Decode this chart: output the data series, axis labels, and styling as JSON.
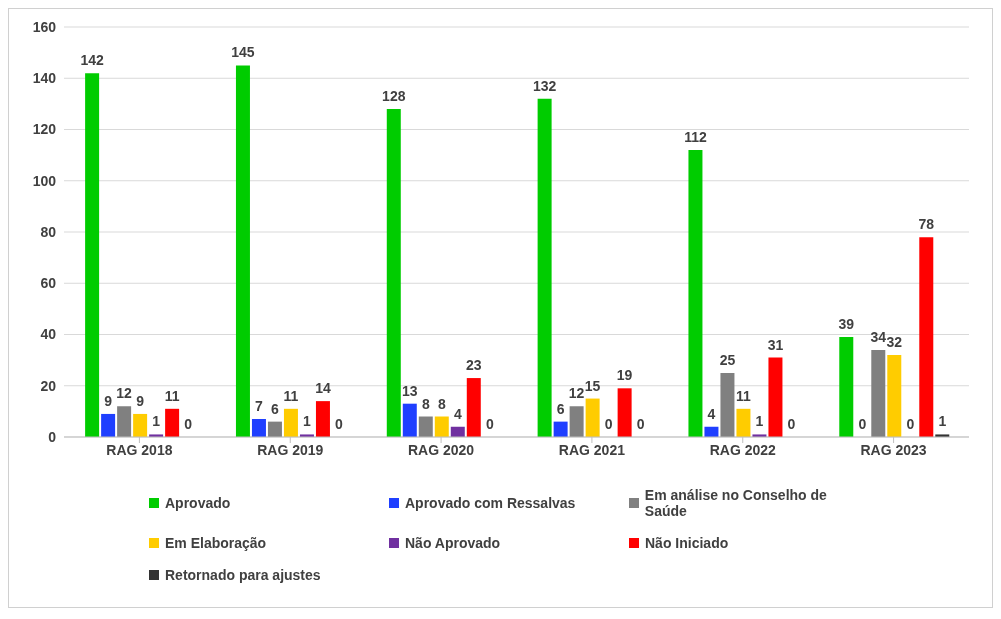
{
  "chart_data": {
    "type": "bar",
    "categories": [
      "RAG 2018",
      "RAG 2019",
      "RAG 2020",
      "RAG 2021",
      "RAG 2022",
      "RAG 2023"
    ],
    "series": [
      {
        "name": "Aprovado",
        "color": "#00cc00",
        "values": [
          142,
          145,
          128,
          132,
          112,
          39
        ]
      },
      {
        "name": "Aprovado com Ressalvas",
        "color": "#1f3fff",
        "values": [
          9,
          7,
          13,
          6,
          4,
          0
        ]
      },
      {
        "name": "Em análise no Conselho de Saúde",
        "color": "#808080",
        "values": [
          12,
          6,
          8,
          12,
          25,
          34
        ]
      },
      {
        "name": "Em Elaboração",
        "color": "#ffcc00",
        "values": [
          9,
          11,
          8,
          15,
          11,
          32
        ]
      },
      {
        "name": "Não Aprovado",
        "color": "#7030a0",
        "values": [
          1,
          1,
          4,
          0,
          1,
          0
        ]
      },
      {
        "name": "Não Iniciado",
        "color": "#ff0000",
        "values": [
          11,
          14,
          23,
          19,
          31,
          78
        ]
      },
      {
        "name": "Retornado para ajustes",
        "color": "#333333",
        "values": [
          0,
          0,
          0,
          0,
          0,
          1
        ]
      }
    ],
    "ylim": [
      0,
      160
    ],
    "yticks": [
      0,
      20,
      40,
      60,
      80,
      100,
      120,
      140,
      160
    ],
    "grid": "y",
    "legend": "bottom",
    "data_labels": true
  }
}
